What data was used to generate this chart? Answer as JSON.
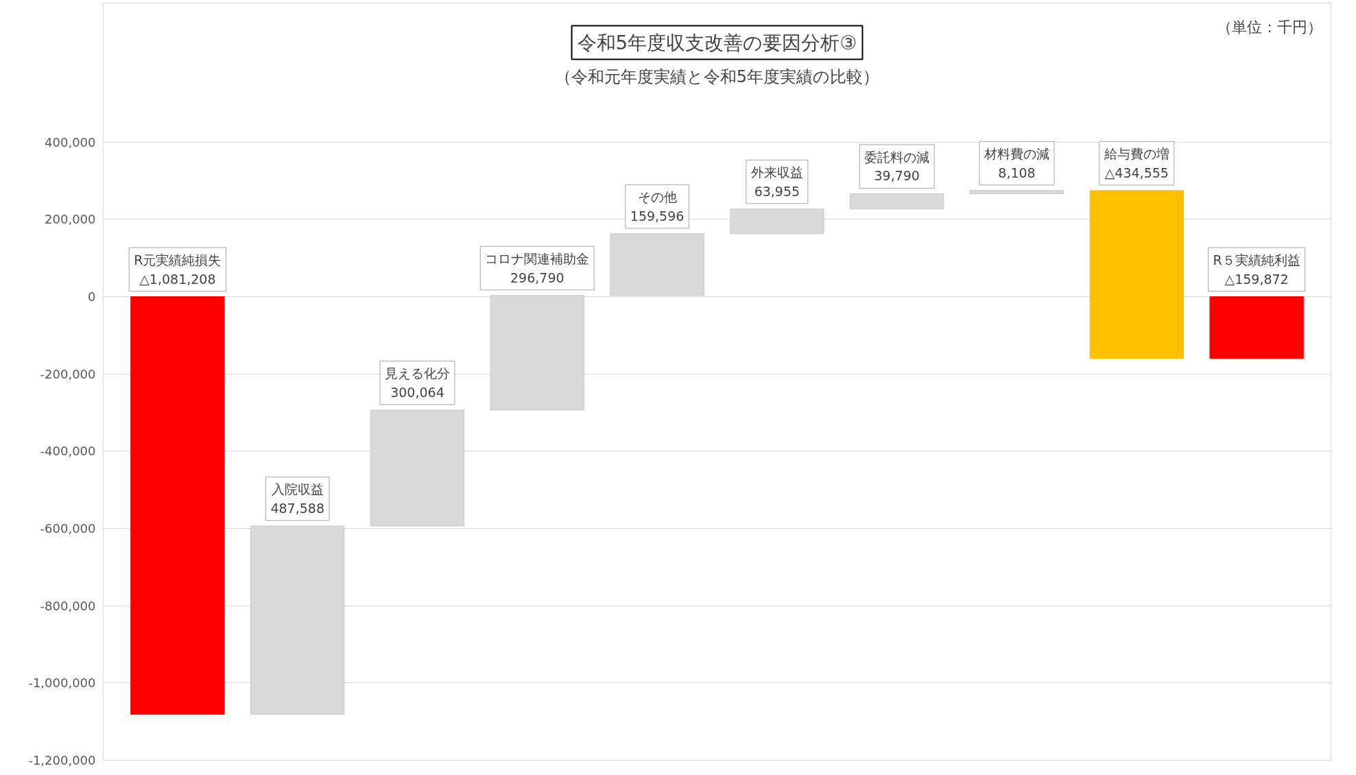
{
  "chart_data": {
    "type": "bar",
    "title": "令和5年度収支改善の要因分析③",
    "subtitle": "（令和元年度実績と令和5年度実績の比較）",
    "annotations": [
      "（単位：千円）"
    ],
    "categories": [
      "R元実績純損失",
      "入院収益",
      "見える化分",
      "コロナ関連補助金",
      "その他",
      "外来収益",
      "委託料の減",
      "材料費の減",
      "給与費の増",
      "R５実績純利益"
    ],
    "values": [
      -1081208,
      487588,
      300064,
      296790,
      159596,
      63955,
      39790,
      8108,
      -434555,
      -159872
    ],
    "base": [
      0,
      -1081208,
      -593620,
      -293556,
      3234,
      162830,
      226785,
      266575,
      274683,
      0
    ],
    "value_labels": [
      "△1,081,208",
      "487,588",
      "300,064",
      "296,790",
      "159,596",
      "63,955",
      "39,790",
      "8,108",
      "△434,555",
      "△159,872"
    ],
    "colors": [
      "#ff0000",
      "#d9d9d9",
      "#d9d9d9",
      "#d9d9d9",
      "#d9d9d9",
      "#d9d9d9",
      "#d9d9d9",
      "#d9d9d9",
      "#ffc000",
      "#ff0000"
    ],
    "ylim": [
      -1200000,
      760000
    ],
    "yticks": [
      {
        "value": -1200000,
        "label": "-1,200,000"
      },
      {
        "value": -1000000,
        "label": "-1,000,000"
      },
      {
        "value": -800000,
        "label": "-800,000"
      },
      {
        "value": -600000,
        "label": "-600,000"
      },
      {
        "value": -400000,
        "label": "-400,000"
      },
      {
        "value": -200000,
        "label": "-200,000"
      },
      0,
      {
        "value": 200000,
        "label": "200,000"
      },
      {
        "value": 400000,
        "label": "400,000"
      }
    ],
    "grid": "y"
  }
}
